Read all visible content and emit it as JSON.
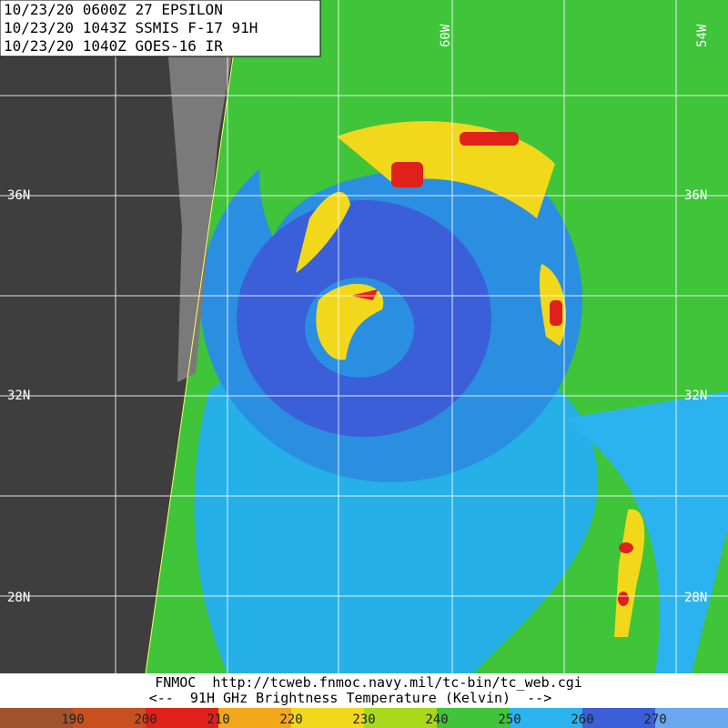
{
  "header": {
    "lines": [
      "10/23/20 0600Z  27 EPSILON",
      "10/23/20 1043Z  SSMIS F-17 91H",
      "10/23/20 1040Z  GOES-16 IR"
    ]
  },
  "grid_labels": {
    "longitude": [
      "60W",
      "54W"
    ],
    "latitude": [
      "36N",
      "32N",
      "28N"
    ]
  },
  "footer": {
    "lines": [
      "FNMOC  http://tcweb.fnmoc.navy.mil/tc-bin/tc_web.cgi",
      "<--  91H GHz Brightness Temperature (Kelvin)  -->"
    ]
  },
  "colorbar": {
    "ticks": [
      190,
      200,
      210,
      220,
      230,
      240,
      250,
      260,
      270
    ]
  }
}
